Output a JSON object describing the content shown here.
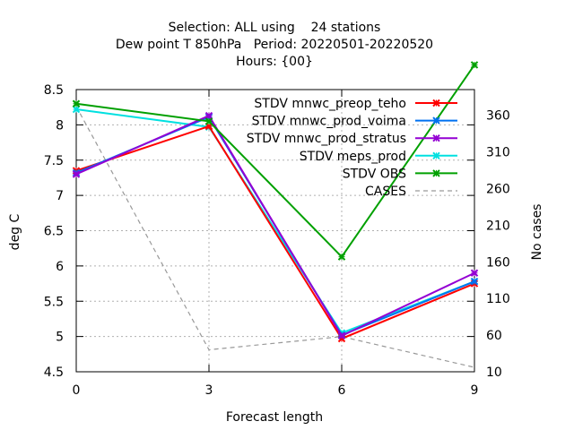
{
  "chart_data": {
    "type": "line",
    "title_lines": [
      "Selection: ALL using    24 stations",
      "Dew point T 850hPa   Period: 20220501-20220520",
      "Hours: {00}"
    ],
    "xlabel": "Forecast length",
    "ylabel": "deg C",
    "y2label": "No cases",
    "x": [
      0,
      3,
      6,
      9
    ],
    "xticks": [
      "0",
      "3",
      "6",
      "9"
    ],
    "xlim": [
      0,
      9
    ],
    "ylim": [
      4.5,
      8.5
    ],
    "yticks": [
      "4.5",
      "5",
      "5.5",
      "6",
      "6.5",
      "7",
      "7.5",
      "8",
      "8.5"
    ],
    "y2lim": [
      10,
      395
    ],
    "y2ticks": [
      "10",
      "60",
      "110",
      "160",
      "210",
      "260",
      "310",
      "360"
    ],
    "grid": true,
    "legend_position": "top-right",
    "series": [
      {
        "name": "STDV mnwc_preop_teho",
        "color": "#ff0000",
        "marker": "x",
        "dash": false,
        "axis": "y",
        "values": [
          7.35,
          7.98,
          4.97,
          5.75
        ]
      },
      {
        "name": "STDV mnwc_prod_voima",
        "color": "#0072f0",
        "marker": "x",
        "dash": false,
        "axis": "y",
        "values": [
          7.32,
          8.11,
          5.02,
          5.78
        ]
      },
      {
        "name": "STDV mnwc_prod_stratus",
        "color": "#9400d3",
        "marker": "x",
        "dash": false,
        "axis": "y",
        "values": [
          7.3,
          8.13,
          5.01,
          5.9
        ]
      },
      {
        "name": "STDV meps_prod",
        "color": "#00e0e0",
        "marker": "x",
        "dash": false,
        "axis": "y",
        "values": [
          8.22,
          7.97,
          5.05,
          5.78
        ]
      },
      {
        "name": "STDV OBS",
        "color": "#00a000",
        "marker": "x",
        "dash": false,
        "axis": "y",
        "values": [
          8.3,
          8.05,
          6.13,
          8.85
        ]
      },
      {
        "name": "CASES",
        "color": "#999999",
        "marker": "none",
        "dash": true,
        "axis": "y2",
        "values": [
          372,
          40,
          58,
          16
        ]
      }
    ]
  }
}
